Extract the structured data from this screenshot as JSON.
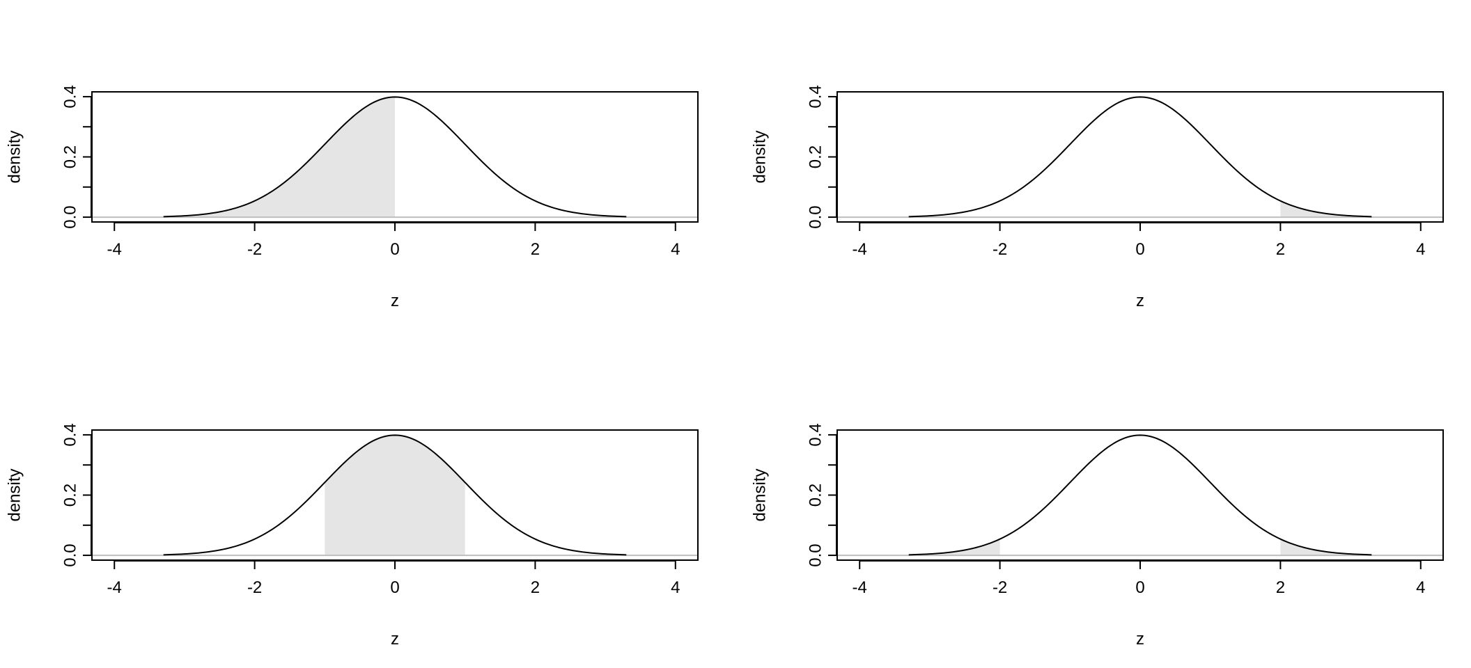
{
  "chart_data": [
    {
      "type": "area",
      "xlabel": "z",
      "ylabel": "density",
      "xlim": [
        -4.32,
        4.32
      ],
      "ylim": [
        -0.016,
        0.416
      ],
      "x_ticks": [
        {
          "value": -4,
          "label": "-4"
        },
        {
          "value": -2,
          "label": "-2"
        },
        {
          "value": 0,
          "label": "0"
        },
        {
          "value": 2,
          "label": "2"
        },
        {
          "value": 4,
          "label": "4"
        }
      ],
      "y_ticks": [
        {
          "value": 0.0,
          "label": "0.0"
        },
        {
          "value": 0.1,
          "label": ""
        },
        {
          "value": 0.2,
          "label": "0.2"
        },
        {
          "value": 0.3,
          "label": ""
        },
        {
          "value": 0.4,
          "label": "0.4"
        }
      ],
      "curve": {
        "distribution": "standard normal",
        "mean": 0,
        "sd": 1,
        "x_range": [
          -3.3,
          3.3
        ]
      },
      "shaded_regions": [
        [
          -3.3,
          0
        ]
      ],
      "fill_color": "#e5e5e5",
      "line_color": "#000000",
      "baseline_color": "#bebebe",
      "grid": false
    },
    {
      "type": "area",
      "xlabel": "z",
      "ylabel": "density",
      "xlim": [
        -4.32,
        4.32
      ],
      "ylim": [
        -0.016,
        0.416
      ],
      "x_ticks": [
        {
          "value": -4,
          "label": "-4"
        },
        {
          "value": -2,
          "label": "-2"
        },
        {
          "value": 0,
          "label": "0"
        },
        {
          "value": 2,
          "label": "2"
        },
        {
          "value": 4,
          "label": "4"
        }
      ],
      "y_ticks": [
        {
          "value": 0.0,
          "label": "0.0"
        },
        {
          "value": 0.1,
          "label": ""
        },
        {
          "value": 0.2,
          "label": "0.2"
        },
        {
          "value": 0.3,
          "label": ""
        },
        {
          "value": 0.4,
          "label": "0.4"
        }
      ],
      "curve": {
        "distribution": "standard normal",
        "mean": 0,
        "sd": 1,
        "x_range": [
          -3.3,
          3.3
        ]
      },
      "shaded_regions": [
        [
          2,
          3.3
        ]
      ],
      "fill_color": "#e5e5e5",
      "line_color": "#000000",
      "baseline_color": "#bebebe",
      "grid": false
    },
    {
      "type": "area",
      "xlabel": "z",
      "ylabel": "density",
      "xlim": [
        -4.32,
        4.32
      ],
      "ylim": [
        -0.016,
        0.416
      ],
      "x_ticks": [
        {
          "value": -4,
          "label": "-4"
        },
        {
          "value": -2,
          "label": "-2"
        },
        {
          "value": 0,
          "label": "0"
        },
        {
          "value": 2,
          "label": "2"
        },
        {
          "value": 4,
          "label": "4"
        }
      ],
      "y_ticks": [
        {
          "value": 0.0,
          "label": "0.0"
        },
        {
          "value": 0.1,
          "label": ""
        },
        {
          "value": 0.2,
          "label": "0.2"
        },
        {
          "value": 0.3,
          "label": ""
        },
        {
          "value": 0.4,
          "label": "0.4"
        }
      ],
      "curve": {
        "distribution": "standard normal",
        "mean": 0,
        "sd": 1,
        "x_range": [
          -3.3,
          3.3
        ]
      },
      "shaded_regions": [
        [
          -1,
          1
        ]
      ],
      "fill_color": "#e5e5e5",
      "line_color": "#000000",
      "baseline_color": "#bebebe",
      "grid": false
    },
    {
      "type": "area",
      "xlabel": "z",
      "ylabel": "density",
      "xlim": [
        -4.32,
        4.32
      ],
      "ylim": [
        -0.016,
        0.416
      ],
      "x_ticks": [
        {
          "value": -4,
          "label": "-4"
        },
        {
          "value": -2,
          "label": "-2"
        },
        {
          "value": 0,
          "label": "0"
        },
        {
          "value": 2,
          "label": "2"
        },
        {
          "value": 4,
          "label": "4"
        }
      ],
      "y_ticks": [
        {
          "value": 0.0,
          "label": "0.0"
        },
        {
          "value": 0.1,
          "label": ""
        },
        {
          "value": 0.2,
          "label": "0.2"
        },
        {
          "value": 0.3,
          "label": ""
        },
        {
          "value": 0.4,
          "label": "0.4"
        }
      ],
      "curve": {
        "distribution": "standard normal",
        "mean": 0,
        "sd": 1,
        "x_range": [
          -3.3,
          3.3
        ]
      },
      "shaded_regions": [
        [
          -3.3,
          -2
        ],
        [
          2,
          3.3
        ]
      ],
      "fill_color": "#e5e5e5",
      "line_color": "#000000",
      "baseline_color": "#bebebe",
      "grid": false
    }
  ]
}
